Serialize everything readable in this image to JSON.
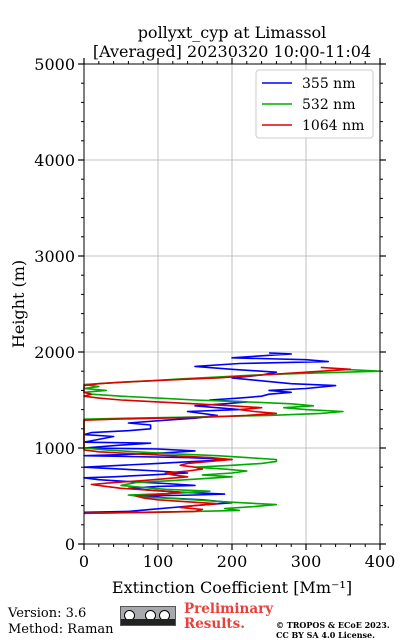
{
  "chart_data": {
    "type": "line",
    "title": "pollyxt_cyp at Limassol",
    "subtitle": "[Averaged] 20230320 10:00-11:04",
    "xlabel": "Extinction Coefficient [Mm⁻¹]",
    "ylabel": "Height (m)",
    "xlim": [
      0,
      400
    ],
    "ylim": [
      0,
      5000
    ],
    "xticks": [
      "0",
      "100",
      "200",
      "300",
      "400"
    ],
    "yticks": [
      "0",
      "1000",
      "2000",
      "3000",
      "4000",
      "5000"
    ],
    "grid": true,
    "legend_position": "top-right",
    "series": [
      {
        "name": "355 nm",
        "color": "#0000ff",
        "points": [
          [
            0,
            330
          ],
          [
            60,
            340
          ],
          [
            90,
            360
          ],
          [
            120,
            380
          ],
          [
            150,
            400
          ],
          [
            200,
            430
          ],
          [
            160,
            460
          ],
          [
            110,
            480
          ],
          [
            80,
            500
          ],
          [
            150,
            510
          ],
          [
            190,
            520
          ],
          [
            130,
            540
          ],
          [
            90,
            560
          ],
          [
            60,
            580
          ],
          [
            100,
            600
          ],
          [
            150,
            610
          ],
          [
            110,
            630
          ],
          [
            60,
            650
          ],
          [
            20,
            670
          ],
          [
            0,
            690
          ],
          [
            40,
            700
          ],
          [
            90,
            720
          ],
          [
            140,
            740
          ],
          [
            100,
            760
          ],
          [
            50,
            780
          ],
          [
            0,
            800
          ],
          [
            50,
            820
          ],
          [
            100,
            840
          ],
          [
            150,
            860
          ],
          [
            200,
            880
          ],
          [
            140,
            900
          ],
          [
            0,
            920
          ],
          [
            50,
            930
          ],
          [
            110,
            950
          ],
          [
            150,
            970
          ],
          [
            100,
            990
          ],
          [
            0,
            1000
          ],
          [
            50,
            1030
          ],
          [
            90,
            1050
          ],
          [
            0,
            1060
          ],
          [
            20,
            1090
          ],
          [
            40,
            1120
          ],
          [
            0,
            1140
          ],
          [
            10,
            1160
          ],
          [
            60,
            1180
          ],
          [
            90,
            1200
          ],
          [
            90,
            1240
          ],
          [
            60,
            1260
          ],
          [
            110,
            1290
          ],
          [
            150,
            1310
          ],
          [
            180,
            1340
          ],
          [
            140,
            1380
          ],
          [
            210,
            1400
          ],
          [
            180,
            1420
          ],
          [
            150,
            1440
          ],
          [
            190,
            1460
          ],
          [
            220,
            1480
          ],
          [
            170,
            1500
          ],
          [
            210,
            1520
          ],
          [
            240,
            1540
          ],
          [
            250,
            1560
          ],
          [
            280,
            1580
          ],
          [
            250,
            1600
          ],
          [
            300,
            1620
          ],
          [
            340,
            1650
          ],
          [
            280,
            1670
          ],
          [
            240,
            1700
          ],
          [
            200,
            1730
          ],
          [
            240,
            1760
          ],
          [
            260,
            1790
          ],
          [
            200,
            1820
          ],
          [
            150,
            1850
          ],
          [
            210,
            1880
          ],
          [
            330,
            1900
          ],
          [
            300,
            1920
          ],
          [
            200,
            1940
          ],
          [
            240,
            1960
          ],
          [
            280,
            1980
          ],
          [
            250,
            1990
          ]
        ]
      },
      {
        "name": "532 nm",
        "color": "#00aa00",
        "points": [
          [
            0,
            320
          ],
          [
            100,
            330
          ],
          [
            150,
            340
          ],
          [
            210,
            350
          ],
          [
            190,
            370
          ],
          [
            230,
            390
          ],
          [
            260,
            410
          ],
          [
            190,
            440
          ],
          [
            130,
            470
          ],
          [
            80,
            490
          ],
          [
            60,
            510
          ],
          [
            130,
            530
          ],
          [
            170,
            550
          ],
          [
            110,
            570
          ],
          [
            80,
            590
          ],
          [
            50,
            610
          ],
          [
            70,
            640
          ],
          [
            120,
            660
          ],
          [
            160,
            680
          ],
          [
            200,
            700
          ],
          [
            160,
            720
          ],
          [
            200,
            740
          ],
          [
            220,
            760
          ],
          [
            190,
            780
          ],
          [
            150,
            800
          ],
          [
            200,
            820
          ],
          [
            240,
            840
          ],
          [
            260,
            860
          ],
          [
            260,
            880
          ],
          [
            220,
            900
          ],
          [
            180,
            920
          ],
          [
            120,
            940
          ],
          [
            70,
            960
          ],
          [
            30,
            980
          ],
          [
            0,
            1000
          ],
          [
            0,
            1100
          ],
          [
            0,
            1200
          ],
          [
            0,
            1300
          ],
          [
            60,
            1310
          ],
          [
            130,
            1320
          ],
          [
            190,
            1330
          ],
          [
            250,
            1340
          ],
          [
            320,
            1360
          ],
          [
            350,
            1380
          ],
          [
            300,
            1400
          ],
          [
            270,
            1420
          ],
          [
            310,
            1440
          ],
          [
            280,
            1460
          ],
          [
            220,
            1480
          ],
          [
            150,
            1500
          ],
          [
            100,
            1520
          ],
          [
            50,
            1540
          ],
          [
            10,
            1560
          ],
          [
            0,
            1580
          ],
          [
            30,
            1600
          ],
          [
            0,
            1620
          ],
          [
            20,
            1640
          ],
          [
            0,
            1660
          ],
          [
            40,
            1680
          ],
          [
            90,
            1700
          ],
          [
            130,
            1720
          ],
          [
            180,
            1740
          ],
          [
            230,
            1760
          ],
          [
            310,
            1780
          ],
          [
            400,
            1800
          ],
          [
            350,
            1820
          ]
        ]
      },
      {
        "name": "1064 nm",
        "color": "#dd0000",
        "points": [
          [
            0,
            320
          ],
          [
            80,
            330
          ],
          [
            150,
            340
          ],
          [
            160,
            360
          ],
          [
            130,
            380
          ],
          [
            150,
            400
          ],
          [
            180,
            420
          ],
          [
            140,
            440
          ],
          [
            100,
            460
          ],
          [
            80,
            480
          ],
          [
            70,
            500
          ],
          [
            110,
            520
          ],
          [
            130,
            540
          ],
          [
            90,
            560
          ],
          [
            50,
            580
          ],
          [
            30,
            600
          ],
          [
            10,
            620
          ],
          [
            40,
            640
          ],
          [
            80,
            660
          ],
          [
            110,
            680
          ],
          [
            140,
            700
          ],
          [
            120,
            720
          ],
          [
            110,
            740
          ],
          [
            140,
            760
          ],
          [
            160,
            780
          ],
          [
            150,
            800
          ],
          [
            130,
            820
          ],
          [
            140,
            840
          ],
          [
            170,
            860
          ],
          [
            200,
            880
          ],
          [
            170,
            900
          ],
          [
            120,
            920
          ],
          [
            70,
            940
          ],
          [
            20,
            960
          ],
          [
            0,
            980
          ],
          [
            0,
            1100
          ],
          [
            0,
            1200
          ],
          [
            0,
            1290
          ],
          [
            40,
            1300
          ],
          [
            100,
            1310
          ],
          [
            160,
            1320
          ],
          [
            220,
            1340
          ],
          [
            260,
            1360
          ],
          [
            230,
            1380
          ],
          [
            210,
            1400
          ],
          [
            240,
            1420
          ],
          [
            200,
            1440
          ],
          [
            150,
            1460
          ],
          [
            100,
            1480
          ],
          [
            50,
            1500
          ],
          [
            20,
            1520
          ],
          [
            0,
            1540
          ],
          [
            10,
            1560
          ],
          [
            0,
            1580
          ],
          [
            0,
            1620
          ],
          [
            0,
            1650
          ],
          [
            20,
            1670
          ],
          [
            60,
            1690
          ],
          [
            120,
            1710
          ],
          [
            180,
            1730
          ],
          [
            240,
            1760
          ],
          [
            300,
            1790
          ],
          [
            360,
            1820
          ],
          [
            320,
            1840
          ]
        ]
      }
    ]
  },
  "footer": {
    "version": "Version: 3.6",
    "method": "Method: Raman",
    "preliminary": [
      "Preliminary",
      "Results."
    ],
    "copyright": [
      "© TROPOS & ECoE 2023.",
      "CC BY SA 4.0 License."
    ]
  }
}
